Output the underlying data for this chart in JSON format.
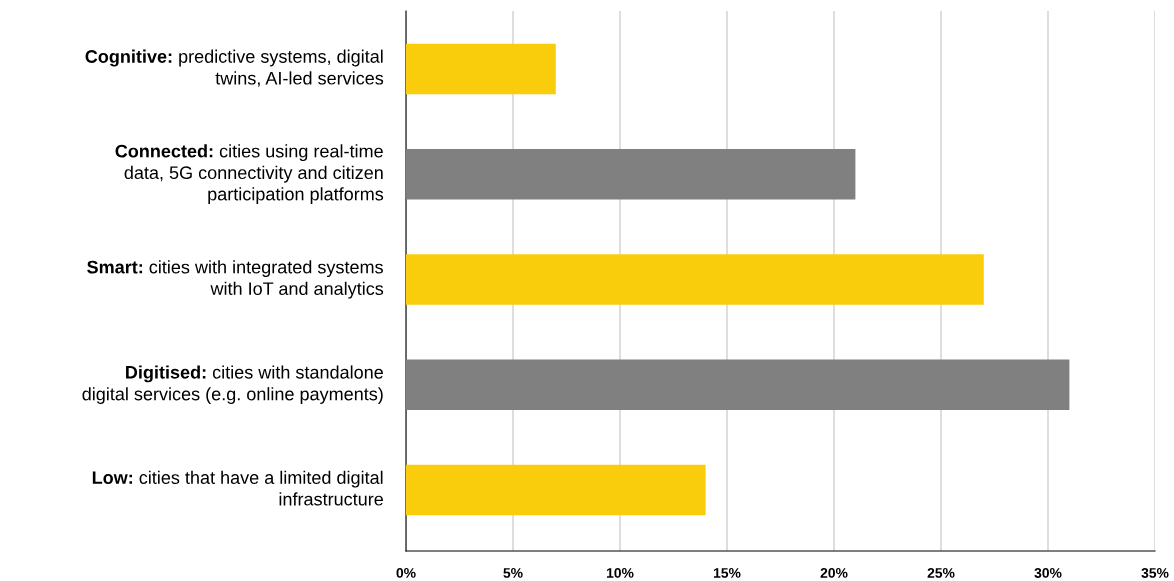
{
  "chart_data": {
    "type": "bar",
    "orientation": "horizontal",
    "categories": [
      "Cognitive: predictive systems, digital\ntwins, AI-led services",
      "Connected: cities using real-time\ndata, 5G connectivity and citizen\nparticipation platforms",
      "Smart: cities with integrated systems\nwith IoT and analytics",
      "Digitised: cities with standalone\ndigital services (e.g. online payments)",
      "Low: cities that have a limited digital\ninfrastructure"
    ],
    "values": [
      7,
      21,
      27,
      31,
      14
    ],
    "colors": [
      "#f9cd0b",
      "#808080",
      "#f9cd0b",
      "#808080",
      "#f9cd0b"
    ],
    "xlim": [
      0,
      35
    ],
    "xticks": [
      {
        "value": 0,
        "label": "0%"
      },
      {
        "value": 5,
        "label": "5%"
      },
      {
        "value": 10,
        "label": "10%"
      },
      {
        "value": 15,
        "label": "15%"
      },
      {
        "value": 20,
        "label": "20%"
      },
      {
        "value": 25,
        "label": "25%"
      },
      {
        "value": 30,
        "label": "30%"
      },
      {
        "value": 35,
        "label": "35%"
      }
    ],
    "grid": "x"
  }
}
